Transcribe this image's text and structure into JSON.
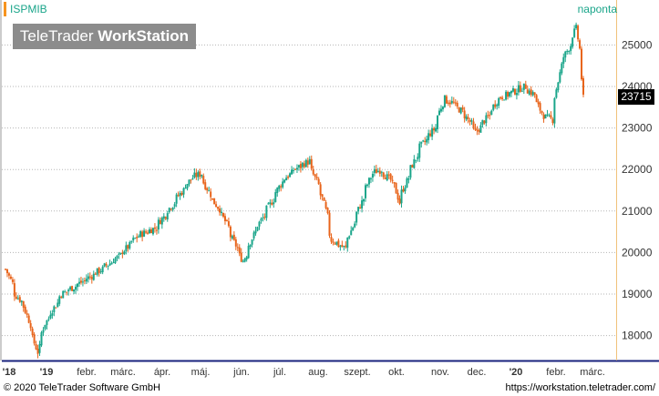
{
  "header": {
    "symbol": "ISPMIB",
    "period": "naponta"
  },
  "brand": {
    "prefix": "TeleTrader ",
    "suffix": "WorkStation"
  },
  "last_price": "23715",
  "footer": {
    "copyright": "© 2020 TeleTrader Software GmbH",
    "url": "https://workstation.teletrader.com/"
  },
  "colors": {
    "up": "#1aa58a",
    "down": "#e8641b",
    "accent": "#f7931e",
    "axis": "#1a237e"
  },
  "chart_data": {
    "type": "candlestick",
    "title": "ISPMIB",
    "xlabel": "",
    "ylabel": "",
    "ylim": [
      17400,
      25600
    ],
    "y_ticks": [
      18000,
      19000,
      20000,
      21000,
      22000,
      23000,
      24000,
      25000
    ],
    "x_ticks": [
      "'18",
      "'19",
      "febr.",
      "márc.",
      "ápr.",
      "máj.",
      "jún.",
      "júl.",
      "aug.",
      "szept.",
      "okt.",
      "nov.",
      "dec.",
      "'20",
      "febr.",
      "márc."
    ],
    "grid": true,
    "last_value": 23715,
    "points": [
      [
        "2018-12-03",
        19600
      ],
      [
        "2018-12-10",
        19000
      ],
      [
        "2018-12-17",
        18700
      ],
      [
        "2018-12-27",
        17600
      ],
      [
        "2019-01-02",
        18300
      ],
      [
        "2019-01-15",
        19000
      ],
      [
        "2019-01-31",
        19300
      ],
      [
        "2019-02-15",
        19600
      ],
      [
        "2019-02-28",
        19900
      ],
      [
        "2019-03-15",
        20400
      ],
      [
        "2019-03-29",
        20600
      ],
      [
        "2019-04-12",
        21200
      ],
      [
        "2019-04-26",
        21800
      ],
      [
        "2019-05-03",
        21900
      ],
      [
        "2019-05-10",
        21400
      ],
      [
        "2019-05-20",
        20900
      ],
      [
        "2019-05-31",
        20100
      ],
      [
        "2019-06-05",
        19800
      ],
      [
        "2019-06-14",
        20500
      ],
      [
        "2019-06-25",
        21100
      ],
      [
        "2019-07-05",
        21700
      ],
      [
        "2019-07-15",
        22000
      ],
      [
        "2019-07-26",
        22200
      ],
      [
        "2019-08-06",
        21300
      ],
      [
        "2019-08-13",
        20300
      ],
      [
        "2019-08-23",
        20100
      ],
      [
        "2019-08-30",
        20700
      ],
      [
        "2019-09-06",
        21300
      ],
      [
        "2019-09-13",
        21900
      ],
      [
        "2019-09-20",
        22000
      ],
      [
        "2019-10-01",
        21600
      ],
      [
        "2019-10-04",
        21200
      ],
      [
        "2019-10-11",
        21800
      ],
      [
        "2019-10-20",
        22500
      ],
      [
        "2019-11-01",
        23000
      ],
      [
        "2019-11-08",
        23700
      ],
      [
        "2019-11-15",
        23600
      ],
      [
        "2019-11-25",
        23300
      ],
      [
        "2019-12-03",
        22900
      ],
      [
        "2019-12-13",
        23300
      ],
      [
        "2019-12-20",
        23700
      ],
      [
        "2020-01-03",
        23900
      ],
      [
        "2020-01-10",
        24000
      ],
      [
        "2020-01-17",
        23800
      ],
      [
        "2020-01-24",
        23300
      ],
      [
        "2020-01-31",
        23200
      ],
      [
        "2020-02-07",
        24500
      ],
      [
        "2020-02-14",
        25000
      ],
      [
        "2020-02-19",
        25400
      ],
      [
        "2020-02-21",
        24900
      ],
      [
        "2020-02-24",
        24200
      ],
      [
        "2020-02-25",
        23715
      ]
    ]
  }
}
